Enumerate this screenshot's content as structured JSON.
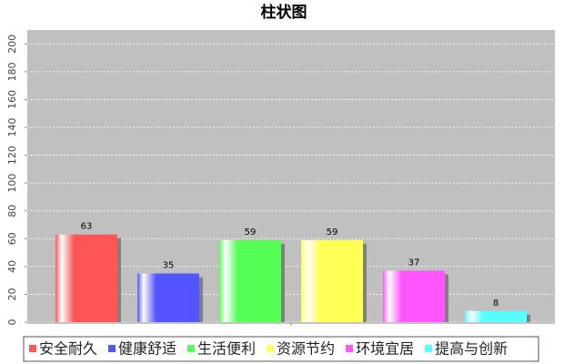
{
  "chart_data": {
    "type": "bar",
    "title": "柱状图",
    "categories": [
      null
    ],
    "series": [
      {
        "name": "安全耐久",
        "color": "#ff5555",
        "values": [
          63
        ]
      },
      {
        "name": "健康舒适",
        "color": "#5555ff",
        "values": [
          35
        ]
      },
      {
        "name": "生活便利",
        "color": "#55ff55",
        "values": [
          59
        ]
      },
      {
        "name": "资源节约",
        "color": "#ffff55",
        "values": [
          59
        ]
      },
      {
        "name": "环境宜居",
        "color": "#ff55ff",
        "values": [
          37
        ]
      },
      {
        "name": "提高与创新",
        "color": "#55ffff",
        "values": [
          8
        ]
      }
    ],
    "ylim": [
      0,
      210
    ],
    "yticks": [
      0,
      20,
      40,
      60,
      80,
      100,
      120,
      140,
      160,
      180,
      200
    ],
    "grid": true,
    "legend": "bottom"
  }
}
